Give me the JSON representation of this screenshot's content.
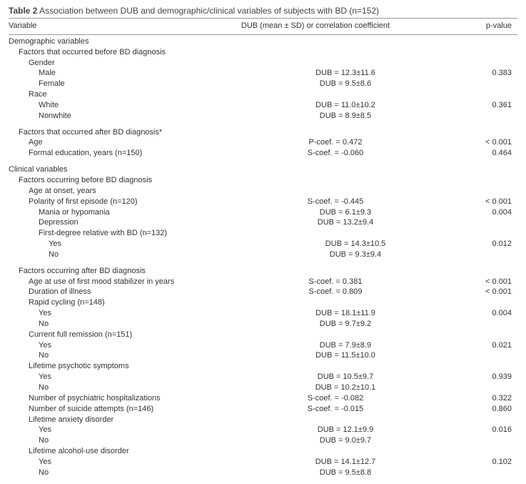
{
  "title_prefix": "Table 2",
  "title_text": " Association between DUB and demographic/clinical variables of subjects with BD (n=152)",
  "headers": {
    "c1": "Variable",
    "c2": "DUB (mean ± SD) or correlation coefficient",
    "c3": "p-value"
  },
  "rows": [
    {
      "indent": 0,
      "c1": "Demographic variables"
    },
    {
      "indent": 1,
      "c1": "Factors that occurred before BD diagnosis"
    },
    {
      "indent": 2,
      "c1": "Gender"
    },
    {
      "indent": 3,
      "c1": "Male",
      "c2": "DUB = 12.3±11.6",
      "c3": "0.383"
    },
    {
      "indent": 3,
      "c1": "Female",
      "c2": "DUB = 9.5±8.6"
    },
    {
      "indent": 2,
      "c1": "Race"
    },
    {
      "indent": 3,
      "c1": "White",
      "c2": "DUB = 11.0±10.2",
      "c3": "0.361"
    },
    {
      "indent": 3,
      "c1": "Nonwhite",
      "c2": "DUB = 8.9±8.5"
    },
    {
      "spacer": true
    },
    {
      "indent": 1,
      "c1": "Factors that occurred after BD diagnosis*"
    },
    {
      "indent": 2,
      "c1": "Age",
      "c2": "P-coef. = 0.472",
      "c3": "< 0.001"
    },
    {
      "indent": 2,
      "c1": "Formal education, years (n=150)",
      "c2": "S-coef. = -0.060",
      "c3": "0.464"
    },
    {
      "spacer": true
    },
    {
      "indent": 0,
      "c1": "Clinical variables"
    },
    {
      "indent": 1,
      "c1": "Factors occurring before BD diagnosis"
    },
    {
      "indent": 2,
      "c1": "Age at onset, years"
    },
    {
      "indent": 2,
      "c1": "Polarity of first episode (n=120)",
      "c2": "S-coef. = -0.445",
      "c3": "< 0.001"
    },
    {
      "indent": 3,
      "c1": "Mania or hypomania",
      "c2": "DUB = 6.1±9.3",
      "c3": "0.004"
    },
    {
      "indent": 3,
      "c1": "Depression",
      "c2": "DUB = 13.2±9.4"
    },
    {
      "indent": 3,
      "c1": "First-degree relative with BD (n=132)"
    },
    {
      "indent": 4,
      "c1": "Yes",
      "c2": "DUB = 14.3±10.5",
      "c3": "0.012"
    },
    {
      "indent": 4,
      "c1": "No",
      "c2": "DUB = 9.3±9.4"
    },
    {
      "spacer": true
    },
    {
      "indent": 1,
      "c1": "Factors occurring after BD diagnosis"
    },
    {
      "indent": 2,
      "c1": "Age at use of first mood stabilizer in years",
      "c2": "S-coef. = 0.381",
      "c3": "< 0.001"
    },
    {
      "indent": 2,
      "c1": "Duration of illness",
      "c2": "S-coef. = 0.809",
      "c3": "< 0.001"
    },
    {
      "indent": 2,
      "c1": "Rapid cycling (n=148)"
    },
    {
      "indent": 3,
      "c1": "Yes",
      "c2": "DUB = 18.1±11.9",
      "c3": "0.004"
    },
    {
      "indent": 3,
      "c1": "No",
      "c2": "DUB = 9.7±9.2"
    },
    {
      "indent": 2,
      "c1": "Current full remission (n=151)"
    },
    {
      "indent": 3,
      "c1": "Yes",
      "c2": "DUB = 7.9±8.9",
      "c3": "0.021"
    },
    {
      "indent": 3,
      "c1": "No",
      "c2": "DUB = 11.5±10.0"
    },
    {
      "indent": 2,
      "c1": "Lifetime psychotic symptoms"
    },
    {
      "indent": 3,
      "c1": "Yes",
      "c2": "DUB = 10.5±9.7",
      "c3": "0.939"
    },
    {
      "indent": 3,
      "c1": "No",
      "c2": "DUB = 10.2±10.1"
    },
    {
      "indent": 2,
      "c1": "Number of psychiatric hospitalizations",
      "c2": "S-coef. = -0.082",
      "c3": "0.322"
    },
    {
      "indent": 2,
      "c1": "Number of suicide attempts (n=146)",
      "c2": "S-coef. = -0.015",
      "c3": "0.860"
    },
    {
      "indent": 2,
      "c1": "Lifetime anxiety disorder"
    },
    {
      "indent": 3,
      "c1": "Yes",
      "c2": "DUB = 12.1±9.9",
      "c3": "0.016"
    },
    {
      "indent": 3,
      "c1": "No",
      "c2": "DUB = 9.0±9.7"
    },
    {
      "indent": 2,
      "c1": "Lifetime alcohol-use disorder"
    },
    {
      "indent": 3,
      "c1": "Yes",
      "c2": "DUB = 14.1±12.7",
      "c3": "0.102"
    },
    {
      "indent": 3,
      "c1": "No",
      "c2": "DUB = 9.5±8.8"
    }
  ]
}
